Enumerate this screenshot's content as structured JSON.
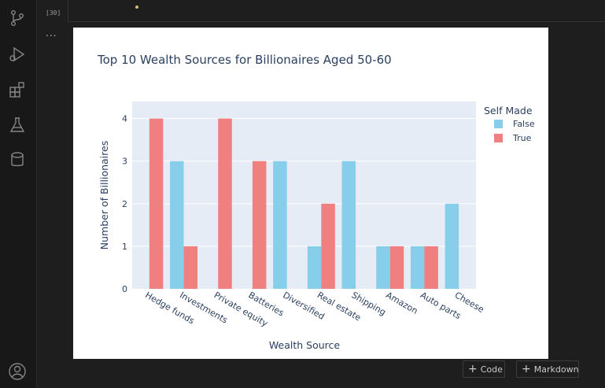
{
  "cell": {
    "execution_count": "[30]",
    "output_toggle": "..."
  },
  "activity_bar": {
    "icons": [
      "source-control-icon",
      "run-debug-icon",
      "extensions-icon",
      "testing-flask-icon",
      "database-icon",
      "account-icon"
    ]
  },
  "colors": {
    "false_series": "#87ceeb",
    "true_series": "#f08080",
    "plot_bg": "#e5ecf6",
    "text": "#2a3f5f"
  },
  "chart_data": {
    "type": "bar",
    "title": "Top 10 Wealth Sources for Billionaires Aged 50-60",
    "xlabel": "Wealth Source",
    "ylabel": "Number of Billionaires",
    "ylim": [
      0,
      4.4
    ],
    "yticks": [
      0,
      1,
      2,
      3,
      4
    ],
    "grid": true,
    "legend_title": "Self Made",
    "legend_position": "top-right",
    "categories": [
      "Hedge funds",
      "Investments",
      "Private equity",
      "Batteries",
      "Diversified",
      "Real estate",
      "Shipping",
      "Amazon",
      "Auto parts",
      "Cheese"
    ],
    "series": [
      {
        "name": "False",
        "values": [
          0,
          3,
          0,
          0,
          3,
          1,
          3,
          1,
          1,
          2
        ]
      },
      {
        "name": "True",
        "values": [
          4,
          1,
          4,
          3,
          0,
          2,
          0,
          1,
          1,
          0
        ]
      }
    ]
  },
  "footer": {
    "add_code_label": "Code",
    "add_markdown_label": "Markdown"
  }
}
